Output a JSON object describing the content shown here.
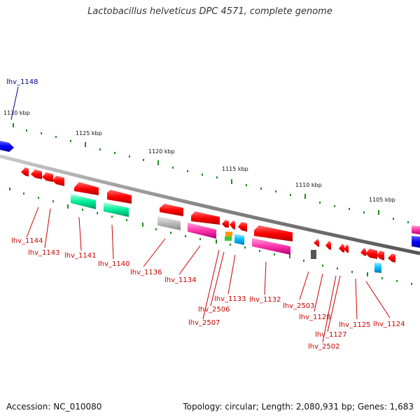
{
  "title": "Lactobacillus helveticus DPC 4571, complete genome",
  "footer": {
    "accession": "Accession: NC_010080",
    "summary": "Topology: circular; Length: 2,080,931 bp; Genes: 1,683"
  },
  "scale_ticks": [
    "1130 kbp",
    "1125 kbp",
    "1120 kbp",
    "1115 kbp",
    "1110 kbp",
    "1105 kbp"
  ],
  "gene_labels": [
    {
      "text": "lhv_1148",
      "color": "#00008b"
    },
    {
      "text": "lhv_1144",
      "color": "#cc0000"
    },
    {
      "text": "lhv_1143",
      "color": "#cc0000"
    },
    {
      "text": "lhv_1141",
      "color": "#cc0000"
    },
    {
      "text": "lhv_1140",
      "color": "#cc0000"
    },
    {
      "text": "lhv_1136",
      "color": "#cc0000"
    },
    {
      "text": "lhv_1134",
      "color": "#cc0000"
    },
    {
      "text": "lhv_2506",
      "color": "#cc0000"
    },
    {
      "text": "lhv_2507",
      "color": "#cc0000"
    },
    {
      "text": "lhv_1133",
      "color": "#cc0000"
    },
    {
      "text": "lhv_1132",
      "color": "#cc0000"
    },
    {
      "text": "lhv_2503",
      "color": "#cc0000"
    },
    {
      "text": "lhv_1128",
      "color": "#cc0000"
    },
    {
      "text": "lhv_1127",
      "color": "#cc0000"
    },
    {
      "text": "lhv_2502",
      "color": "#cc0000"
    },
    {
      "text": "lhv_1125",
      "color": "#cc0000"
    },
    {
      "text": "lhv_1124",
      "color": "#cc0000"
    }
  ],
  "colors": {
    "cds": "#ff0000",
    "trna": "#00ee99",
    "rrna": "#ff33aa",
    "misc": "#bbbbbb",
    "blue": "#0000ff",
    "cyan": "#00bbff",
    "orange": "#ff9900",
    "green": "#33cc33",
    "dark": "#555555",
    "backbone": "#888888",
    "tick": "#228b22"
  }
}
